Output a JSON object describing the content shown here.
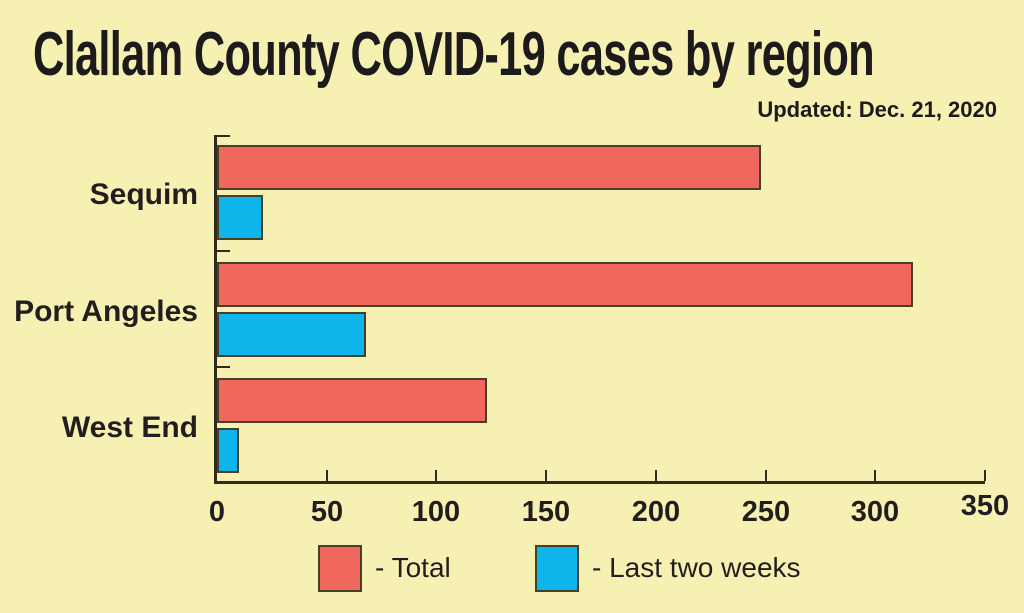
{
  "title": "Clallam County COVID-19 cases by region",
  "updated": "Updated: Dec. 21, 2020",
  "colors": {
    "background": "#f6f1b3",
    "total_bar": "#f0685c",
    "last_two_weeks_bar": "#0fb4ea",
    "axis": "#2f2b1d",
    "bar_outline": "#45402a",
    "text": "#1d1a1b"
  },
  "chart_data": {
    "type": "bar",
    "orientation": "horizontal",
    "title": "Clallam County COVID-19 cases by region",
    "subtitle": "Updated: Dec. 21, 2020",
    "categories": [
      "Sequim",
      "Port Angeles",
      "West End"
    ],
    "series": [
      {
        "name": "Total",
        "color": "#f0685c",
        "values": [
          248,
          317,
          123
        ]
      },
      {
        "name": "Last two weeks",
        "color": "#0fb4ea",
        "values": [
          21,
          68,
          10
        ]
      }
    ],
    "xlabel": "",
    "ylabel": "",
    "xlim": [
      0,
      350
    ],
    "x_ticks": [
      0,
      50,
      100,
      150,
      200,
      250,
      300,
      350
    ],
    "grid": false,
    "legend_position": "bottom",
    "legend": [
      {
        "label": "- Total",
        "color": "#f0685c"
      },
      {
        "label": "- Last two weeks",
        "color": "#0fb4ea"
      }
    ]
  }
}
